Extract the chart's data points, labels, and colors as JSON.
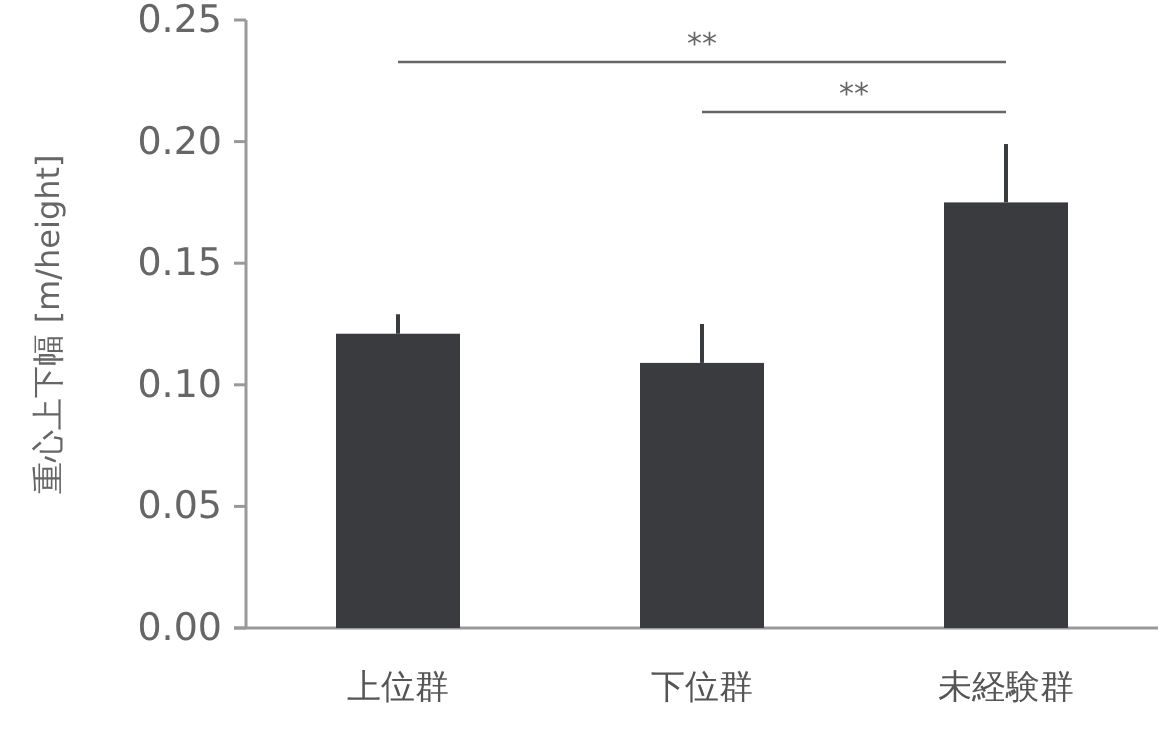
{
  "chart_data": {
    "type": "bar",
    "categories": [
      "上位群",
      "下位群",
      "未経験群"
    ],
    "values": [
      0.121,
      0.109,
      0.175
    ],
    "errors": [
      [
        0.121,
        0.129
      ],
      [
        0.109,
        0.125
      ],
      [
        0.175,
        0.199
      ]
    ],
    "color": "#393b3e",
    "ylabel": "重心上下幅 [m/height]",
    "ylim": [
      0,
      0.25
    ],
    "yticks": [
      {
        "value": 0,
        "label": "0.00"
      },
      {
        "value": 0.05,
        "label": "0.05"
      },
      {
        "value": 0.1,
        "label": "0.10"
      },
      {
        "value": 0.15,
        "label": "0.15"
      },
      {
        "value": 0.2,
        "label": "0.20"
      },
      {
        "value": 0.25,
        "label": "0.25"
      }
    ],
    "annotations": [
      "**",
      "**"
    ]
  }
}
